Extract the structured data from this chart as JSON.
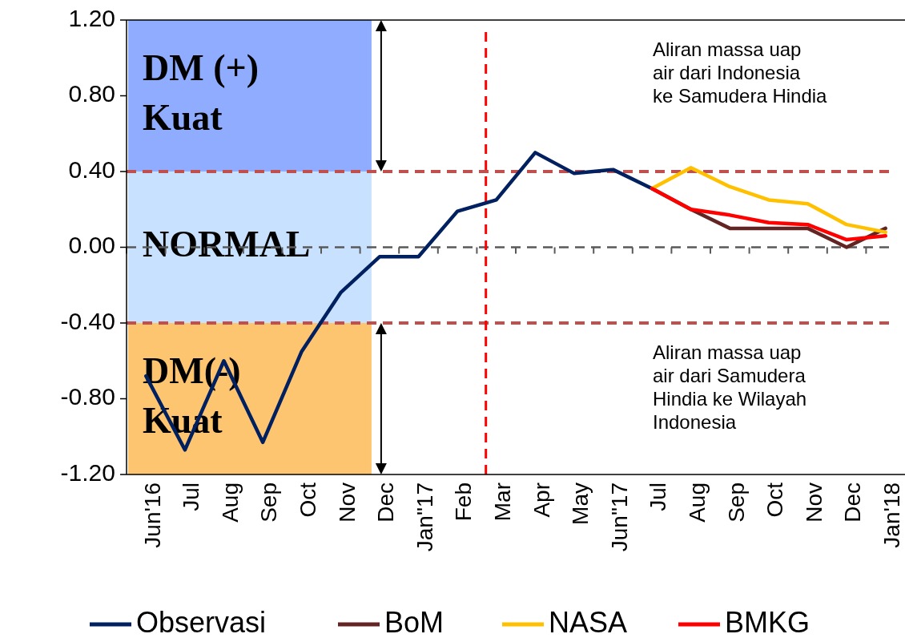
{
  "chart_data": {
    "type": "line",
    "categories": [
      "Jun'16",
      "Jul",
      "Aug",
      "Sep",
      "Oct",
      "Nov",
      "Dec",
      "Jan\"17",
      "Feb",
      "Mar",
      "Apr",
      "May",
      "Jun\"17",
      "Jul",
      "Aug",
      "Sep",
      "Oct",
      "Nov",
      "Dec",
      "Jan'18"
    ],
    "series": [
      {
        "name": "Observasi",
        "color": "#002060",
        "values": [
          -0.68,
          -1.07,
          -0.6,
          -1.03,
          -0.55,
          -0.24,
          -0.05,
          -0.05,
          0.19,
          0.25,
          0.5,
          0.39,
          0.41,
          0.31,
          null,
          null,
          null,
          null,
          null,
          null
        ]
      },
      {
        "name": "BoM",
        "color": "#632523",
        "values": [
          null,
          null,
          null,
          null,
          null,
          null,
          null,
          null,
          null,
          null,
          null,
          null,
          null,
          0.31,
          0.2,
          0.1,
          0.1,
          0.1,
          0.0,
          0.1
        ]
      },
      {
        "name": "NASA",
        "color": "#ffc000",
        "values": [
          null,
          null,
          null,
          null,
          null,
          null,
          null,
          null,
          null,
          null,
          null,
          null,
          null,
          0.31,
          0.42,
          0.32,
          0.25,
          0.23,
          0.12,
          0.08
        ]
      },
      {
        "name": "BMKG",
        "color": "#ff0000",
        "values": [
          null,
          null,
          null,
          null,
          null,
          null,
          null,
          null,
          null,
          null,
          null,
          null,
          null,
          0.31,
          0.2,
          0.17,
          0.13,
          0.12,
          0.04,
          0.06
        ]
      }
    ],
    "ylim": [
      -1.2,
      1.2
    ],
    "yticks": [
      {
        "value": -1.2,
        "label": "-1.20"
      },
      {
        "value": -0.8,
        "label": "-0.80"
      },
      {
        "value": -0.4,
        "label": "-0.40"
      },
      {
        "value": 0,
        "label": "0.00"
      },
      {
        "value": 0.4,
        "label": "0.40"
      },
      {
        "value": 0.8,
        "label": "0.80"
      },
      {
        "value": 1.2,
        "label": "1.20"
      }
    ],
    "bands": [
      {
        "axis": "y",
        "from": 0.4,
        "to": 1.2,
        "label": "DM (+) Kuat",
        "color": "#7b9eff"
      },
      {
        "axis": "y",
        "from": -0.4,
        "to": 0.4,
        "label": "NORMAL",
        "color": "#bddcff"
      },
      {
        "axis": "y",
        "from": -1.2,
        "to": -0.4,
        "label": "DM(-) Kuat",
        "color": "#fdbb57"
      }
    ],
    "ref_lines": [
      {
        "axis": "y",
        "value": 0.4,
        "color": "#c0504d",
        "line_style": "dashed"
      },
      {
        "axis": "y",
        "value": -0.4,
        "color": "#c0504d",
        "line_style": "dashed"
      },
      {
        "axis": "y",
        "value": 0,
        "color": "#595959",
        "line_style": "dashed"
      },
      {
        "axis": "x",
        "value": "Mar",
        "color": "#ff0000",
        "line_style": "dashed"
      }
    ],
    "annotations": [
      "Aliran massa uap air dari Indonesia ke Samudera Hindia",
      "Aliran massa uap air dari Samudera Hindia ke Wilayah Indonesia"
    ],
    "legend": "bottom",
    "grid": false,
    "marker": "none",
    "line_style": "solid"
  }
}
